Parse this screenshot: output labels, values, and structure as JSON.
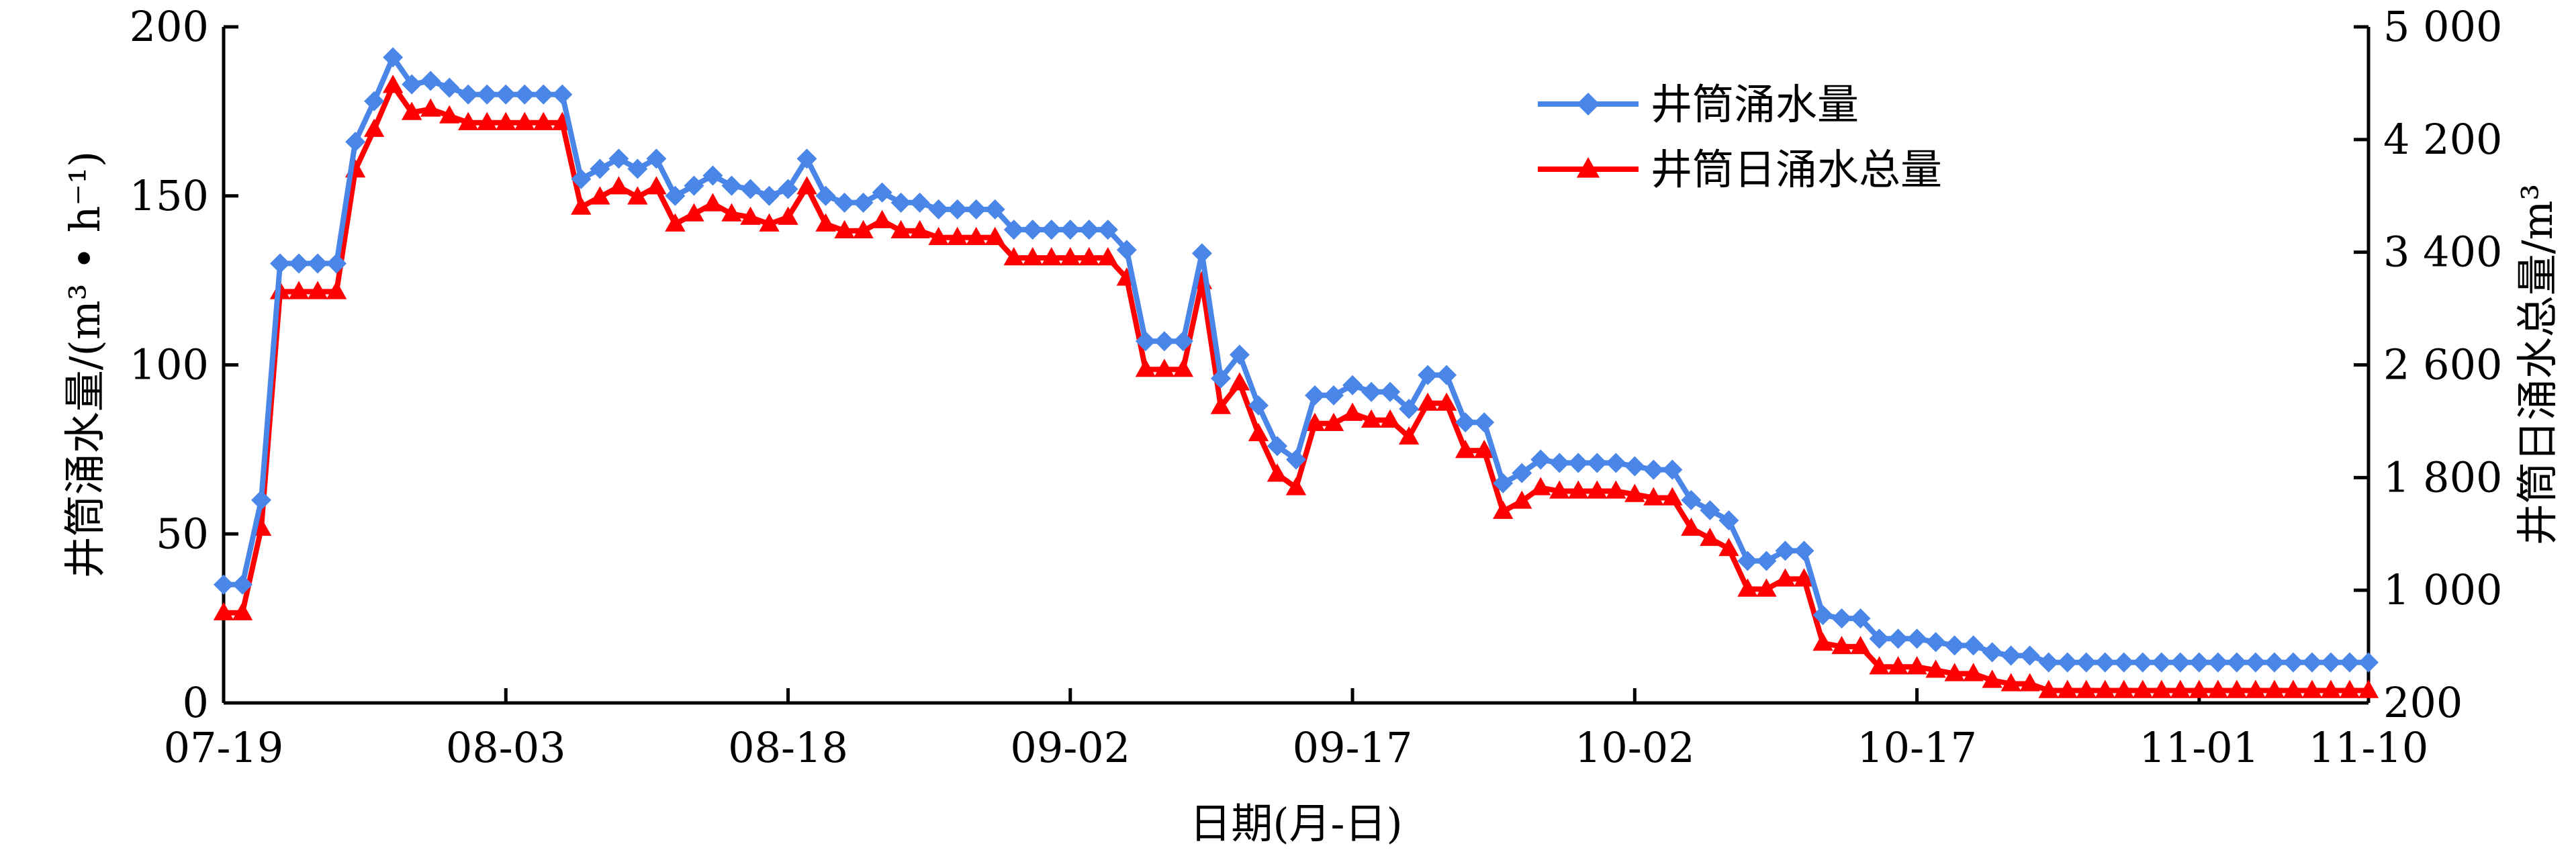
{
  "chart_data": {
    "type": "line",
    "xlabel": "日期(月-日)",
    "ylabel_left": "井筒涌水量/(m³ • h⁻¹)",
    "ylabel_right": "井筒日涌水总量/m³",
    "ylim_left": [
      0,
      200
    ],
    "ylim_right": [
      200,
      5000
    ],
    "yticks_left": [
      "0",
      "50",
      "100",
      "150",
      "200"
    ],
    "yticks_right": [
      "200",
      "1 000",
      "1 800",
      "2 600",
      "3 400",
      "4 200",
      "5 000"
    ],
    "xtick_labels": [
      "07-19",
      "08-03",
      "08-18",
      "09-02",
      "09-17",
      "10-02",
      "10-17",
      "11-01",
      "11-10"
    ],
    "xtick_days": [
      0,
      15,
      30,
      45,
      60,
      75,
      90,
      105,
      114
    ],
    "grid": false,
    "legend_position": "top-center",
    "series": [
      {
        "name": "井筒涌水量",
        "axis": "left",
        "color": "#4a86e8",
        "marker": "diamond",
        "values": [
          35,
          35,
          60,
          130,
          130,
          130,
          130,
          166,
          178,
          191,
          183,
          184,
          182,
          180,
          180,
          180,
          180,
          180,
          180,
          155,
          158,
          161,
          158,
          161,
          150,
          153,
          156,
          153,
          152,
          150,
          152,
          161,
          150,
          148,
          148,
          151,
          148,
          148,
          146,
          146,
          146,
          146,
          140,
          140,
          140,
          140,
          140,
          140,
          134,
          107,
          107,
          107,
          133,
          96,
          103,
          88,
          76,
          72,
          91,
          91,
          94,
          92,
          92,
          87,
          97,
          97,
          83,
          83,
          65,
          68,
          72,
          71,
          71,
          71,
          71,
          70,
          69,
          69,
          60,
          57,
          54,
          42,
          42,
          45,
          45,
          26,
          25,
          25,
          19,
          19,
          19,
          18,
          17,
          17,
          15,
          14,
          14,
          12,
          12,
          12,
          12,
          12,
          12,
          12,
          12,
          12,
          12,
          12,
          12,
          12,
          12,
          12,
          12,
          12,
          12
        ]
      },
      {
        "name": "井筒日涌水总量",
        "axis": "right",
        "color": "#ff0000",
        "marker": "triangle",
        "values": [
          840,
          840,
          1440,
          3120,
          3120,
          3120,
          3120,
          3984,
          4272,
          4584,
          4392,
          4416,
          4368,
          4320,
          4320,
          4320,
          4320,
          4320,
          4320,
          3720,
          3792,
          3864,
          3792,
          3864,
          3600,
          3672,
          3744,
          3672,
          3648,
          3600,
          3648,
          3864,
          3600,
          3552,
          3552,
          3624,
          3552,
          3552,
          3504,
          3504,
          3504,
          3504,
          3360,
          3360,
          3360,
          3360,
          3360,
          3360,
          3216,
          2568,
          2568,
          2568,
          3192,
          2304,
          2472,
          2112,
          1824,
          1728,
          2184,
          2184,
          2256,
          2208,
          2208,
          2088,
          2328,
          2328,
          1992,
          1992,
          1560,
          1632,
          1728,
          1704,
          1704,
          1704,
          1704,
          1680,
          1656,
          1656,
          1440,
          1368,
          1296,
          1008,
          1008,
          1080,
          1080,
          624,
          600,
          600,
          456,
          456,
          456,
          432,
          408,
          408,
          360,
          336,
          336,
          288,
          288,
          288,
          288,
          288,
          288,
          288,
          288,
          288,
          288,
          288,
          288,
          288,
          288,
          288,
          288,
          288,
          288
        ]
      }
    ]
  }
}
